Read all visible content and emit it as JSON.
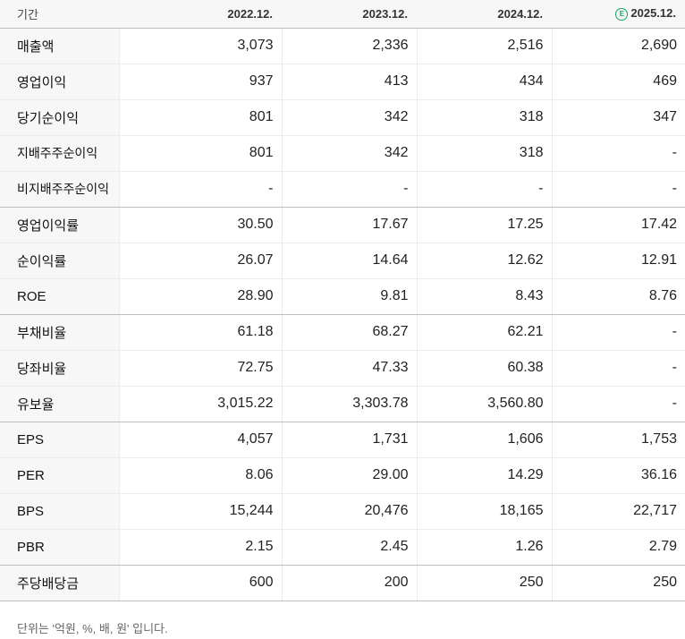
{
  "header": {
    "period_label": "기간",
    "years": [
      "2022.12.",
      "2023.12.",
      "2024.12.",
      "2025.12."
    ],
    "estimate_mark": "E"
  },
  "rows": [
    {
      "label": "매출액",
      "values": [
        "3,073",
        "2,336",
        "2,516",
        "2,690"
      ]
    },
    {
      "label": "영업이익",
      "values": [
        "937",
        "413",
        "434",
        "469"
      ]
    },
    {
      "label": "당기순이익",
      "values": [
        "801",
        "342",
        "318",
        "347"
      ]
    },
    {
      "label": "지배주주순이익",
      "values": [
        "801",
        "342",
        "318",
        "-"
      ]
    },
    {
      "label": "비지배주주순이익",
      "values": [
        "-",
        "-",
        "-",
        "-"
      ]
    },
    {
      "label": "영업이익률",
      "values": [
        "30.50",
        "17.67",
        "17.25",
        "17.42"
      ]
    },
    {
      "label": "순이익률",
      "values": [
        "26.07",
        "14.64",
        "12.62",
        "12.91"
      ]
    },
    {
      "label": "ROE",
      "values": [
        "28.90",
        "9.81",
        "8.43",
        "8.76"
      ]
    },
    {
      "label": "부채비율",
      "values": [
        "61.18",
        "68.27",
        "62.21",
        "-"
      ]
    },
    {
      "label": "당좌비율",
      "values": [
        "72.75",
        "47.33",
        "60.38",
        "-"
      ]
    },
    {
      "label": "유보율",
      "values": [
        "3,015.22",
        "3,303.78",
        "3,560.80",
        "-"
      ]
    },
    {
      "label": "EPS",
      "values": [
        "4,057",
        "1,731",
        "1,606",
        "1,753"
      ]
    },
    {
      "label": "PER",
      "values": [
        "8.06",
        "29.00",
        "14.29",
        "36.16"
      ]
    },
    {
      "label": "BPS",
      "values": [
        "15,244",
        "20,476",
        "18,165",
        "22,717"
      ]
    },
    {
      "label": "PBR",
      "values": [
        "2.15",
        "2.45",
        "1.26",
        "2.79"
      ]
    },
    {
      "label": "주당배당금",
      "values": [
        "600",
        "200",
        "250",
        "250"
      ]
    }
  ],
  "footnote": "단위는 '억원, %, 배, 원' 입니다.",
  "colors": {
    "estimate": "#1aa36b",
    "label_bg": "#f7f7f7"
  }
}
